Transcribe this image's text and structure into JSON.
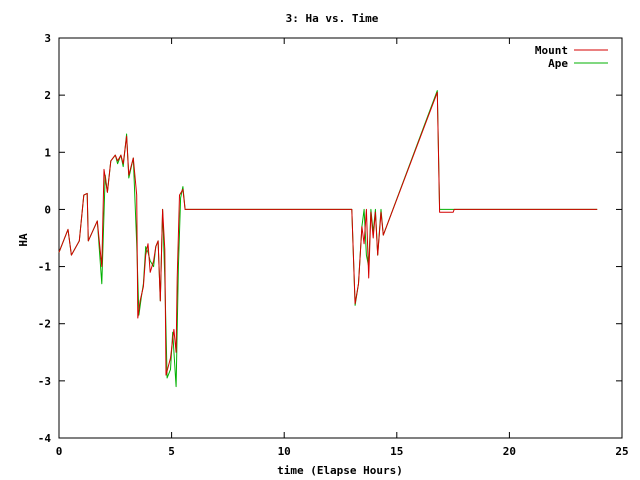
{
  "chart_data": {
    "type": "line",
    "title": "3: Ha vs. Time",
    "xlabel": "time (Elapse Hours)",
    "ylabel": "HA",
    "xlim": [
      0,
      25
    ],
    "ylim": [
      -4,
      3
    ],
    "xticks": [
      0,
      5,
      10,
      15,
      20,
      25
    ],
    "yticks": [
      3,
      2,
      1,
      0,
      -1,
      -2,
      -3,
      -4
    ],
    "xtick_labels": [
      "0",
      "5",
      "10",
      "15",
      "20",
      "25"
    ],
    "ytick_labels": [
      "3",
      "2",
      "1",
      "0",
      "-1",
      "-2",
      "-3",
      "-4"
    ],
    "grid": false,
    "legend_position": "top-right",
    "series": [
      {
        "name": "Mount",
        "color": "#d40000",
        "points": [
          [
            0,
            -0.75
          ],
          [
            0.4,
            -0.35
          ],
          [
            0.55,
            -0.8
          ],
          [
            0.9,
            -0.55
          ],
          [
            1.1,
            0.25
          ],
          [
            1.25,
            0.28
          ],
          [
            1.3,
            -0.55
          ],
          [
            1.7,
            -0.2
          ],
          [
            1.9,
            -1.0
          ],
          [
            2.0,
            0.7
          ],
          [
            2.15,
            0.3
          ],
          [
            2.3,
            0.85
          ],
          [
            2.5,
            0.95
          ],
          [
            2.6,
            0.85
          ],
          [
            2.75,
            0.95
          ],
          [
            2.85,
            0.8
          ],
          [
            3.0,
            1.28
          ],
          [
            3.1,
            0.6
          ],
          [
            3.3,
            0.9
          ],
          [
            3.45,
            0.25
          ],
          [
            3.5,
            -1.9
          ],
          [
            3.6,
            -1.6
          ],
          [
            3.75,
            -1.35
          ],
          [
            3.85,
            -0.8
          ],
          [
            3.95,
            -0.6
          ],
          [
            4.05,
            -1.1
          ],
          [
            4.2,
            -0.9
          ],
          [
            4.3,
            -0.65
          ],
          [
            4.4,
            -0.55
          ],
          [
            4.5,
            -1.6
          ],
          [
            4.6,
            0.0
          ],
          [
            4.7,
            -0.7
          ],
          [
            4.75,
            -2.9
          ],
          [
            4.95,
            -2.6
          ],
          [
            5.1,
            -2.1
          ],
          [
            5.2,
            -2.5
          ],
          [
            5.25,
            -1.2
          ],
          [
            5.35,
            0.25
          ],
          [
            5.5,
            0.35
          ],
          [
            5.6,
            0.0
          ],
          [
            13.0,
            0.0
          ],
          [
            13.15,
            -1.65
          ],
          [
            13.3,
            -1.3
          ],
          [
            13.45,
            -0.3
          ],
          [
            13.55,
            -0.6
          ],
          [
            13.65,
            0.0
          ],
          [
            13.75,
            -1.2
          ],
          [
            13.85,
            -0.05
          ],
          [
            13.95,
            -0.5
          ],
          [
            14.05,
            -0.05
          ],
          [
            14.15,
            -0.8
          ],
          [
            14.3,
            -0.05
          ],
          [
            14.4,
            -0.45
          ],
          [
            16.8,
            2.05
          ],
          [
            16.9,
            -0.05
          ],
          [
            17.5,
            -0.05
          ],
          [
            17.55,
            0.0
          ],
          [
            23.9,
            0.0
          ]
        ]
      },
      {
        "name": "Ape",
        "color": "#00b000",
        "points": [
          [
            0,
            -0.75
          ],
          [
            0.4,
            -0.35
          ],
          [
            0.55,
            -0.8
          ],
          [
            0.9,
            -0.55
          ],
          [
            1.1,
            0.25
          ],
          [
            1.25,
            0.28
          ],
          [
            1.3,
            -0.55
          ],
          [
            1.7,
            -0.2
          ],
          [
            1.9,
            -1.3
          ],
          [
            2.05,
            0.6
          ],
          [
            2.15,
            0.3
          ],
          [
            2.3,
            0.85
          ],
          [
            2.5,
            0.95
          ],
          [
            2.6,
            0.8
          ],
          [
            2.75,
            0.95
          ],
          [
            2.85,
            0.75
          ],
          [
            3.0,
            1.32
          ],
          [
            3.1,
            0.55
          ],
          [
            3.3,
            0.9
          ],
          [
            3.45,
            -0.6
          ],
          [
            3.55,
            -1.85
          ],
          [
            3.65,
            -1.55
          ],
          [
            3.75,
            -1.3
          ],
          [
            3.85,
            -0.65
          ],
          [
            3.95,
            -0.75
          ],
          [
            4.05,
            -0.9
          ],
          [
            4.2,
            -1.0
          ],
          [
            4.3,
            -0.65
          ],
          [
            4.4,
            -0.55
          ],
          [
            4.5,
            -1.6
          ],
          [
            4.6,
            0.0
          ],
          [
            4.7,
            -1.2
          ],
          [
            4.8,
            -2.95
          ],
          [
            4.95,
            -2.8
          ],
          [
            5.05,
            -2.15
          ],
          [
            5.2,
            -3.1
          ],
          [
            5.3,
            -1.0
          ],
          [
            5.4,
            0.2
          ],
          [
            5.5,
            0.4
          ],
          [
            5.6,
            0.0
          ],
          [
            13.0,
            0.0
          ],
          [
            13.15,
            -1.68
          ],
          [
            13.3,
            -1.3
          ],
          [
            13.45,
            -0.3
          ],
          [
            13.55,
            0.0
          ],
          [
            13.65,
            -0.8
          ],
          [
            13.75,
            -1.0
          ],
          [
            13.85,
            0.0
          ],
          [
            13.95,
            -0.4
          ],
          [
            14.05,
            0.0
          ],
          [
            14.15,
            -0.8
          ],
          [
            14.3,
            0.0
          ],
          [
            14.4,
            -0.45
          ],
          [
            16.8,
            2.08
          ],
          [
            16.9,
            0.0
          ],
          [
            23.9,
            0.0
          ]
        ]
      }
    ]
  }
}
